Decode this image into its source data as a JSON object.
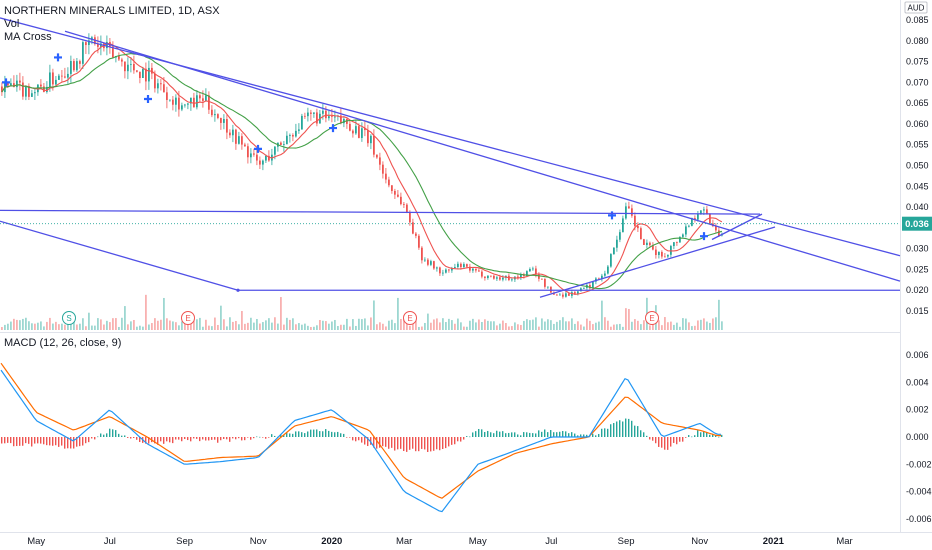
{
  "header": {
    "symbol_line": "NORTHERN MINERALS LIMITED, 1D, ASX",
    "vol_label": "Vol",
    "ma_label": "MA Cross",
    "macd_label": "MACD (12, 26, close, 9)",
    "currency_label": "AUD",
    "price_badge": "0.036"
  },
  "chart_data": [
    {
      "type": "line",
      "panel": "price",
      "title": "NORTHERN MINERALS LIMITED, 1D, ASX",
      "y_ticks": [
        "0.085",
        "0.080",
        "0.075",
        "0.070",
        "0.065",
        "0.060",
        "0.055",
        "0.050",
        "0.045",
        "0.040",
        "0.036",
        "0.030",
        "0.025",
        "0.020",
        "0.015"
      ],
      "ylim": [
        0.013,
        0.087
      ],
      "x_ticks": [
        "May",
        "Jul",
        "Sep",
        "Nov",
        "2020",
        "Mar",
        "May",
        "Jul",
        "Sep",
        "Nov",
        "2021",
        "Mar"
      ],
      "last_price": 0.036,
      "colors": {
        "up": "#26a69a",
        "down": "#ef5350",
        "trendline": "#4a4ae0",
        "ma_fast": "#2962ff",
        "ma_slow": "#43a047"
      },
      "series": [
        {
          "x": [
            "2019-04-01",
            "2019-05-01",
            "2019-06-01",
            "2019-06-15",
            "2019-07-01",
            "2019-07-15",
            "2019-08-01",
            "2019-08-15",
            "2019-09-01",
            "2019-09-15",
            "2019-10-01",
            "2019-10-15",
            "2019-11-01",
            "2019-11-15",
            "2019-12-01",
            "2019-12-15",
            "2020-01-01",
            "2020-01-15",
            "2020-02-01",
            "2020-02-15",
            "2020-03-01",
            "2020-03-15",
            "2020-04-01",
            "2020-04-15",
            "2020-05-01",
            "2020-05-15",
            "2020-06-01",
            "2020-06-15",
            "2020-07-01",
            "2020-07-15",
            "2020-08-01",
            "2020-08-15",
            "2020-09-01",
            "2020-09-15",
            "2020-10-01",
            "2020-10-15",
            "2020-11-01",
            "2020-11-15"
          ],
          "values": [
            0.069,
            0.068,
            0.075,
            0.08,
            0.077,
            0.074,
            0.072,
            0.068,
            0.064,
            0.066,
            0.061,
            0.056,
            0.05,
            0.054,
            0.059,
            0.062,
            0.061,
            0.06,
            0.056,
            0.046,
            0.04,
            0.028,
            0.024,
            0.026,
            0.024,
            0.023,
            0.023,
            0.025,
            0.019,
            0.019,
            0.021,
            0.025,
            0.04,
            0.031,
            0.028,
            0.033,
            0.04,
            0.034
          ]
        }
      ]
    },
    {
      "type": "line",
      "panel": "macd",
      "title": "MACD (12, 26, close, 9)",
      "y_ticks": [
        "0.006",
        "0.004",
        "0.002",
        "0.000",
        "-0.002",
        "-0.004",
        "-0.006"
      ],
      "ylim": [
        -0.0068,
        0.0068
      ],
      "x_ticks": [
        "May",
        "Jul",
        "Sep",
        "Nov",
        "2020",
        "Mar",
        "May",
        "Jul",
        "Sep",
        "Nov",
        "2021",
        "Mar"
      ],
      "colors": {
        "macd": "#2196f3",
        "signal": "#ff6d00",
        "hist_pos": "#26a69a",
        "hist_neg": "#ef5350"
      },
      "x": [
        "2019-04-01",
        "2019-05-01",
        "2019-06-01",
        "2019-07-01",
        "2019-08-01",
        "2019-09-01",
        "2019-10-01",
        "2019-11-01",
        "2019-12-01",
        "2020-01-01",
        "2020-02-01",
        "2020-03-01",
        "2020-04-01",
        "2020-05-01",
        "2020-06-01",
        "2020-07-01",
        "2020-08-01",
        "2020-09-01",
        "2020-10-01",
        "2020-11-01",
        "2020-11-15"
      ],
      "series": [
        {
          "values": [
            0.005,
            0.0012,
            -0.0003,
            0.002,
            -0.0005,
            -0.002,
            -0.0018,
            -0.0015,
            0.0012,
            0.002,
            -0.0002,
            -0.004,
            -0.0055,
            -0.002,
            -0.001,
            0.0,
            0.0,
            0.0044,
            0.0,
            0.001,
            0.0002
          ]
        },
        {
          "values": [
            0.0055,
            0.0018,
            0.0005,
            0.0015,
            0.0,
            -0.0018,
            -0.0015,
            -0.0014,
            0.0008,
            0.0015,
            0.0005,
            -0.003,
            -0.0045,
            -0.0025,
            -0.0012,
            -0.0005,
            0.0,
            0.003,
            0.001,
            0.0005,
            0.0001
          ]
        }
      ]
    }
  ]
}
